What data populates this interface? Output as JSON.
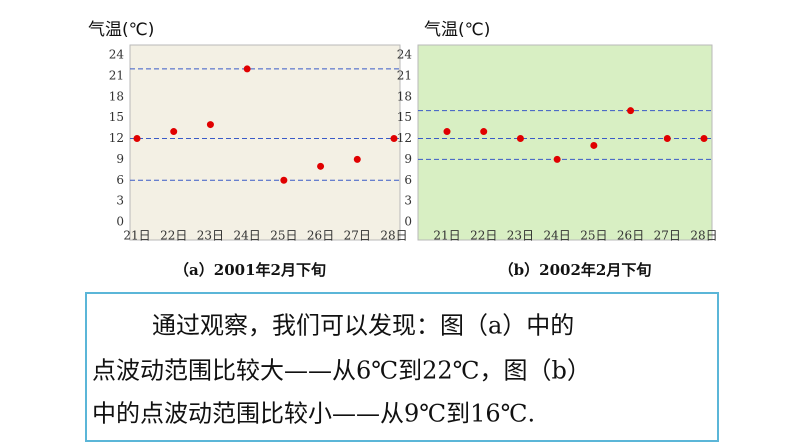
{
  "chart_data": [
    {
      "type": "scatter",
      "title": "（a）2001年2月下旬",
      "y_label": "气温(℃)",
      "categories": [
        "21日",
        "22日",
        "23日",
        "24日",
        "25日",
        "26日",
        "27日",
        "28日"
      ],
      "values": [
        12,
        13,
        14,
        22,
        6,
        8,
        9,
        12
      ],
      "color": "#e00000",
      "ylim": [
        0,
        24
      ],
      "yticks": [
        0,
        3,
        6,
        9,
        12,
        15,
        18,
        21,
        24
      ],
      "reference_lines": [
        22,
        12,
        6
      ],
      "reference_color": "#3a5bc7",
      "background": "#f3f0e4"
    },
    {
      "type": "scatter",
      "title": "（b）2002年2月下旬",
      "y_label": "气温(℃)",
      "categories": [
        "21日",
        "22日",
        "23日",
        "24日",
        "25日",
        "26日",
        "27日",
        "28日"
      ],
      "values": [
        13,
        13,
        12,
        9,
        11,
        16,
        12,
        12
      ],
      "color": "#e00000",
      "ylim": [
        0,
        24
      ],
      "yticks": [
        0,
        3,
        6,
        9,
        12,
        15,
        18,
        21,
        24
      ],
      "reference_lines": [
        16,
        12,
        9
      ],
      "reference_color": "#3a5bc7",
      "background": "#d8efc3"
    }
  ],
  "paragraph": {
    "lines": [
      "通过观察，我们可以发现：图（a）中的",
      "点波动范围比较大——从6℃到22℃，图（b）",
      "中的点波动范围比较小——从9℃到16℃."
    ]
  }
}
